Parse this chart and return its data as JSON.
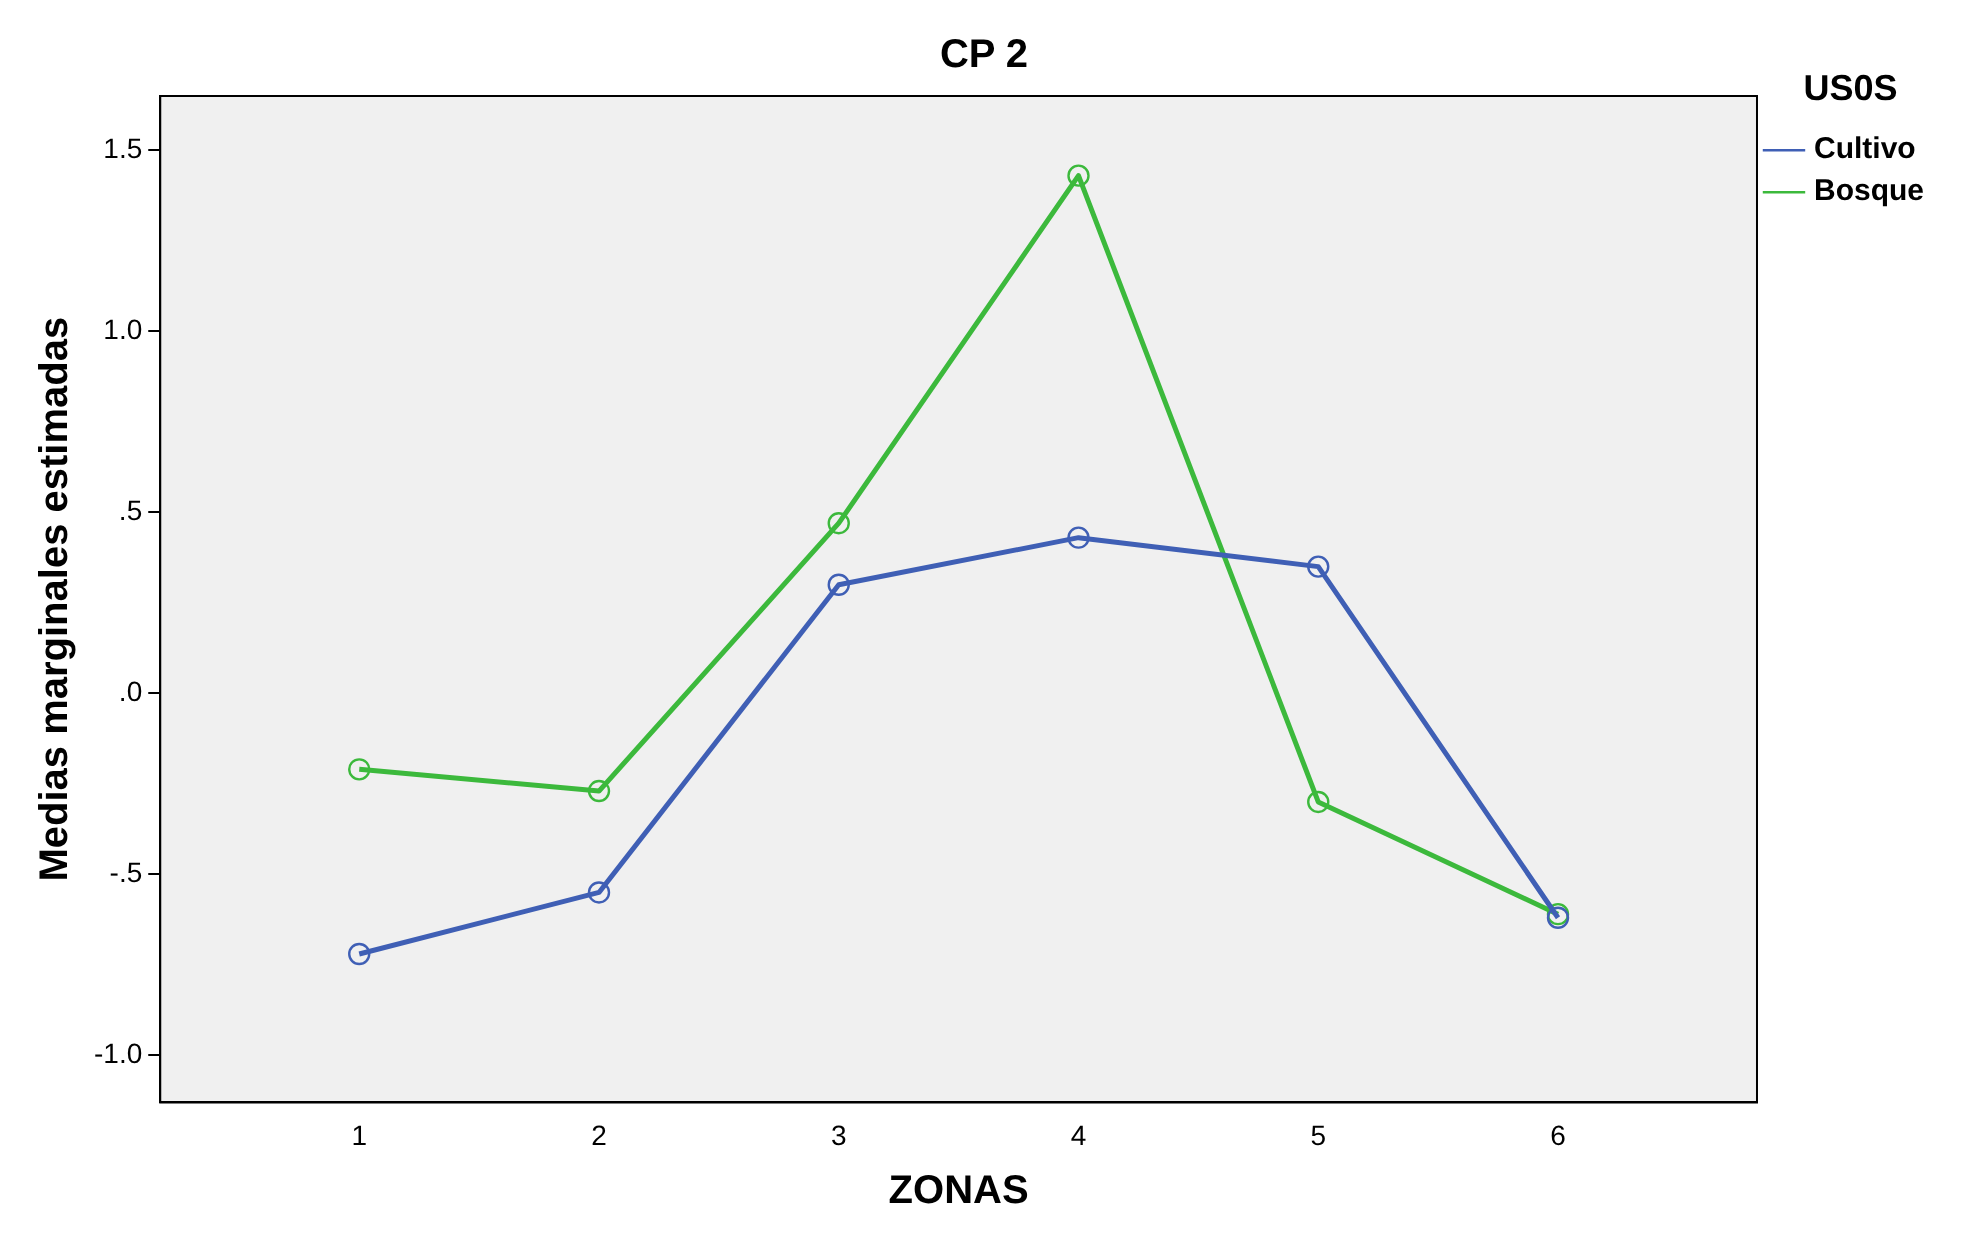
{
  "chart_data": {
    "type": "line",
    "title": "CP 2",
    "xlabel": "ZONAS",
    "ylabel": "Medias marginales estimadas",
    "legend_title": "US0S",
    "x": [
      1,
      2,
      3,
      4,
      5,
      6
    ],
    "series": [
      {
        "name": "Cultivo",
        "color": "#3f5fb5",
        "values": [
          -0.72,
          -0.55,
          0.3,
          0.43,
          0.35,
          -0.62
        ]
      },
      {
        "name": "Bosque",
        "color": "#3cb93c",
        "values": [
          -0.21,
          -0.27,
          0.47,
          1.43,
          -0.3,
          -0.61
        ]
      }
    ],
    "xlim": [
      0.17,
      6.83
    ],
    "xticks": [
      1,
      2,
      3,
      4,
      5,
      6
    ],
    "ylim": [
      -1.13,
      1.65
    ],
    "yticks": [
      {
        "value": -1,
        "label": "-1.0"
      },
      {
        "value": -0.5,
        "label": "-.5"
      },
      {
        "value": 0,
        "label": ".0"
      },
      {
        "value": 0.5,
        "label": ".5"
      },
      {
        "value": 1,
        "label": "1.0"
      },
      {
        "value": 1.5,
        "label": "1.5"
      }
    ],
    "grid": false,
    "legend": "right",
    "marker": "circle",
    "line_style": "solid"
  }
}
